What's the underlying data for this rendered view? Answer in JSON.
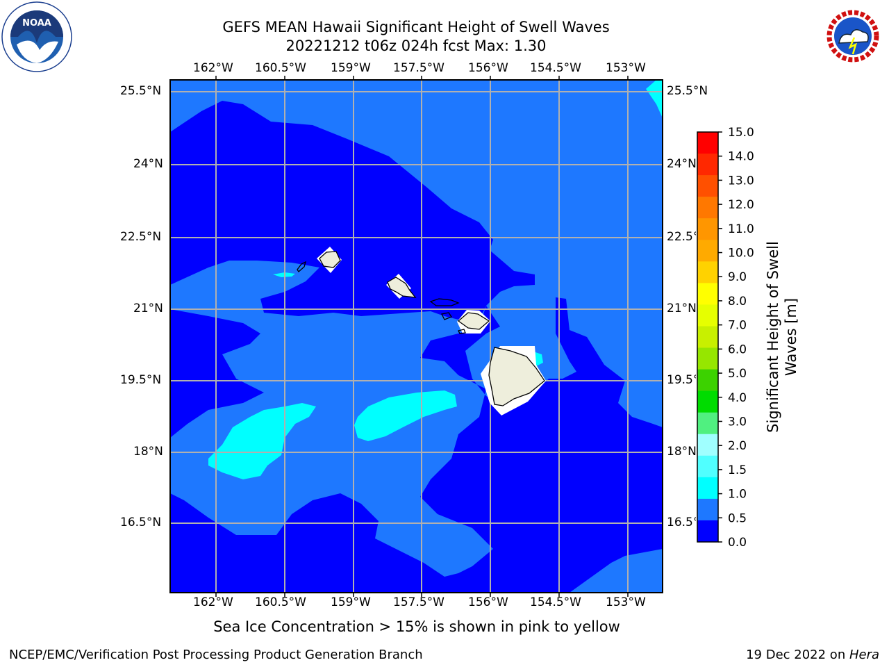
{
  "title": {
    "line1": "GEFS MEAN Hawaii Significant Height of Swell Waves",
    "line2": "20221212 t06z 024h fcst   Max: 1.30"
  },
  "map": {
    "lon_labels": [
      "162°W",
      "160.5°W",
      "159°W",
      "157.5°W",
      "156°W",
      "154.5°W",
      "153°W"
    ],
    "lat_labels": [
      "25.5°N",
      "24°N",
      "22.5°N",
      "21°N",
      "19.5°N",
      "18°N",
      "16.5°N"
    ],
    "colors": {
      "level_0_0_5": "#0000ff",
      "level_0_5_1_0": "#1e78ff",
      "level_1_0_1_5": "#00ffff",
      "land": "#eeeedc",
      "grid": "#b0b0b0"
    }
  },
  "colorbar": {
    "label_line1": "Significant Height of Swell",
    "label_line2": "Waves [m]",
    "ticks": [
      "15.0",
      "14.0",
      "13.0",
      "12.0",
      "11.0",
      "10.0",
      "9.0",
      "8.0",
      "7.0",
      "6.0",
      "5.0",
      "4.0",
      "3.0",
      "2.0",
      "1.5",
      "1.0",
      "0.5",
      "0.0"
    ],
    "colors": [
      "#ff0000",
      "#ff2800",
      "#ff5000",
      "#ff7800",
      "#ff9600",
      "#ffaa00",
      "#ffd200",
      "#ffff00",
      "#e6ff00",
      "#c8f000",
      "#96e600",
      "#3cd200",
      "#00dc00",
      "#50f080",
      "#a0ffff",
      "#50ffff",
      "#00ffff",
      "#1e78ff",
      "#0000ff"
    ]
  },
  "footnote": "Sea Ice Concentration > 15% is shown in pink to yellow",
  "credit_left": "NCEP/EMC/Verification Post Processing Product Generation Branch",
  "credit_date": "19 Dec 2022 on ",
  "credit_host": "Hera",
  "logos": {
    "noaa": "NOAA",
    "nws": "NATIONAL WEATHER SERVICE"
  }
}
